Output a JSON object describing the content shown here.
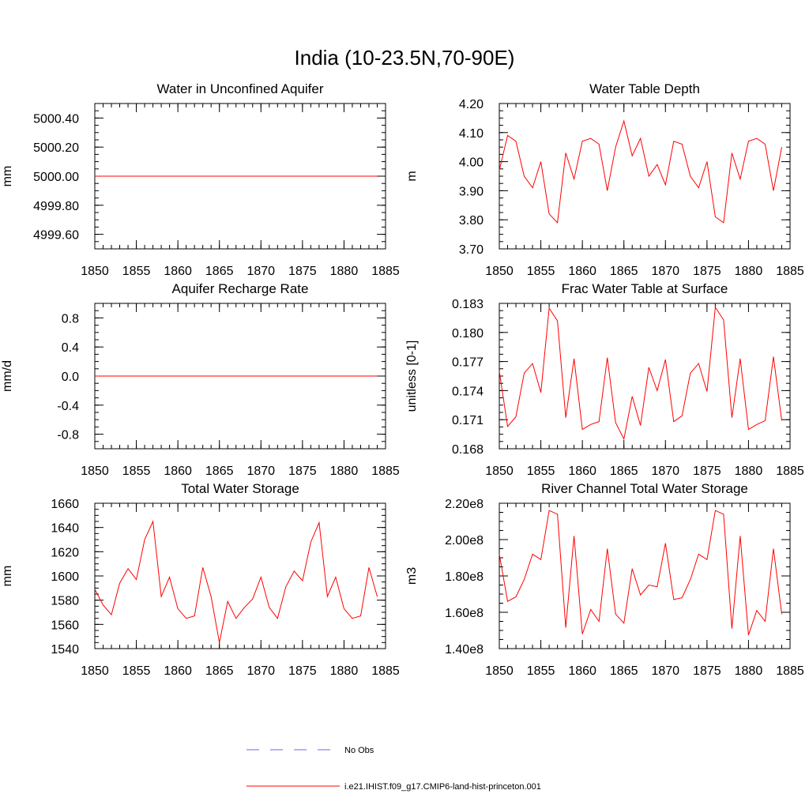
{
  "figure": {
    "title": "India (10-23.5N,70-90E)",
    "line_color": "#ff0000",
    "obs_color": "#6a6ad8"
  },
  "legend": {
    "obs_label": "No Obs",
    "model_label": "i.e21.IHIST.f09_g17.CMIP6-land-hist-princeton.001"
  },
  "chart_data": [
    {
      "type": "line",
      "title": "Water in Unconfined Aquifer",
      "ylabel": "mm",
      "xlabel": "",
      "xlim": [
        1850,
        1885
      ],
      "ylim": [
        4999.5,
        5000.5
      ],
      "xticks": [
        1850,
        1855,
        1860,
        1865,
        1870,
        1875,
        1880,
        1885
      ],
      "yticks": [
        4999.6,
        4999.8,
        5000.0,
        5000.2,
        5000.4
      ],
      "ytick_labels": [
        "4999.60",
        "4999.80",
        "5000.00",
        "5000.20",
        "5000.40"
      ],
      "series": [
        {
          "x": [
            1850,
            1884
          ],
          "values": [
            5000.0,
            5000.0
          ]
        }
      ]
    },
    {
      "type": "line",
      "title": "Water Table Depth",
      "ylabel": "m",
      "xlabel": "",
      "xlim": [
        1850,
        1885
      ],
      "ylim": [
        3.7,
        4.2
      ],
      "xticks": [
        1850,
        1855,
        1860,
        1865,
        1870,
        1875,
        1880,
        1885
      ],
      "yticks": [
        3.7,
        3.8,
        3.9,
        4.0,
        4.1,
        4.2
      ],
      "ytick_labels": [
        "3.70",
        "3.80",
        "3.90",
        "4.00",
        "4.10",
        "4.20"
      ],
      "series": [
        {
          "x": [
            1850,
            1851,
            1852,
            1853,
            1854,
            1855,
            1856,
            1857,
            1858,
            1859,
            1860,
            1861,
            1862,
            1863,
            1864,
            1865,
            1866,
            1867,
            1868,
            1869,
            1870,
            1871,
            1872,
            1873,
            1874,
            1875,
            1876,
            1877,
            1878,
            1879,
            1880,
            1881,
            1882,
            1883,
            1884
          ],
          "values": [
            3.97,
            4.09,
            4.07,
            3.95,
            3.91,
            4.0,
            3.82,
            3.79,
            4.03,
            3.94,
            4.07,
            4.08,
            4.06,
            3.9,
            4.05,
            4.14,
            4.02,
            4.08,
            3.95,
            3.99,
            3.92,
            4.07,
            4.06,
            3.95,
            3.91,
            4.0,
            3.81,
            3.79,
            4.03,
            3.94,
            4.07,
            4.08,
            4.06,
            3.9,
            4.05
          ]
        }
      ]
    },
    {
      "type": "line",
      "title": "Aquifer Recharge Rate",
      "ylabel": "mm/d",
      "xlabel": "",
      "xlim": [
        1850,
        1885
      ],
      "ylim": [
        -1.0,
        1.0
      ],
      "xticks": [
        1850,
        1855,
        1860,
        1865,
        1870,
        1875,
        1880,
        1885
      ],
      "yticks": [
        -0.8,
        -0.4,
        0.0,
        0.4,
        0.8
      ],
      "ytick_labels": [
        "-0.8",
        "-0.4",
        "0.0",
        "0.4",
        "0.8"
      ],
      "series": [
        {
          "x": [
            1850,
            1884
          ],
          "values": [
            0.0,
            0.0
          ]
        }
      ]
    },
    {
      "type": "line",
      "title": "Frac Water Table at Surface",
      "ylabel": "unitless [0-1]",
      "xlabel": "",
      "xlim": [
        1850,
        1885
      ],
      "ylim": [
        0.168,
        0.183
      ],
      "xticks": [
        1850,
        1855,
        1860,
        1865,
        1870,
        1875,
        1880,
        1885
      ],
      "yticks": [
        0.168,
        0.171,
        0.174,
        0.177,
        0.18,
        0.183
      ],
      "ytick_labels": [
        "0.168",
        "0.171",
        "0.174",
        "0.177",
        "0.180",
        "0.183"
      ],
      "series": [
        {
          "x": [
            1850,
            1851,
            1852,
            1853,
            1854,
            1855,
            1856,
            1857,
            1858,
            1859,
            1860,
            1861,
            1862,
            1863,
            1864,
            1865,
            1866,
            1867,
            1868,
            1869,
            1870,
            1871,
            1872,
            1873,
            1874,
            1875,
            1876,
            1877,
            1878,
            1879,
            1880,
            1881,
            1882,
            1883,
            1884
          ],
          "values": [
            0.176,
            0.1703,
            0.1713,
            0.1758,
            0.1768,
            0.1738,
            0.1825,
            0.1812,
            0.1712,
            0.1773,
            0.17,
            0.1705,
            0.1708,
            0.1774,
            0.1707,
            0.169,
            0.1734,
            0.1704,
            0.1764,
            0.174,
            0.1772,
            0.1708,
            0.1714,
            0.1758,
            0.1768,
            0.1739,
            0.1826,
            0.1813,
            0.1712,
            0.1773,
            0.17,
            0.1705,
            0.1709,
            0.1775,
            0.1709
          ]
        }
      ]
    },
    {
      "type": "line",
      "title": "Total Water Storage",
      "ylabel": "mm",
      "xlabel": "",
      "xlim": [
        1850,
        1885
      ],
      "ylim": [
        1540,
        1660
      ],
      "xticks": [
        1850,
        1855,
        1860,
        1865,
        1870,
        1875,
        1880,
        1885
      ],
      "yticks": [
        1540,
        1560,
        1580,
        1600,
        1620,
        1640,
        1660
      ],
      "ytick_labels": [
        "1540",
        "1560",
        "1580",
        "1600",
        "1620",
        "1640",
        "1660"
      ],
      "series": [
        {
          "x": [
            1850,
            1851,
            1852,
            1853,
            1854,
            1855,
            1856,
            1857,
            1858,
            1859,
            1860,
            1861,
            1862,
            1863,
            1864,
            1865,
            1866,
            1867,
            1868,
            1869,
            1870,
            1871,
            1872,
            1873,
            1874,
            1875,
            1876,
            1877,
            1878,
            1879,
            1880,
            1881,
            1882,
            1883,
            1884
          ],
          "values": [
            1589,
            1576,
            1568,
            1594,
            1606,
            1597,
            1630,
            1645,
            1583,
            1599,
            1573,
            1565,
            1567,
            1607,
            1583,
            1545,
            1579,
            1565,
            1574,
            1581,
            1599,
            1574,
            1565,
            1591,
            1604,
            1596,
            1628,
            1644,
            1583,
            1599,
            1573,
            1565,
            1567,
            1607,
            1583
          ]
        }
      ]
    },
    {
      "type": "line",
      "title": "River Channel Total Water Storage",
      "ylabel": "m3",
      "xlabel": "",
      "xlim": [
        1850,
        1885
      ],
      "ylim": [
        140000000,
        220000000
      ],
      "xticks": [
        1850,
        1855,
        1860,
        1865,
        1870,
        1875,
        1880,
        1885
      ],
      "yticks": [
        140000000,
        160000000,
        180000000,
        200000000,
        220000000
      ],
      "ytick_labels": [
        "1.40e8",
        "1.60e8",
        "1.80e8",
        "2.00e8",
        "2.20e8"
      ],
      "series": [
        {
          "x": [
            1850,
            1851,
            1852,
            1853,
            1854,
            1855,
            1856,
            1857,
            1858,
            1859,
            1860,
            1861,
            1862,
            1863,
            1864,
            1865,
            1866,
            1867,
            1868,
            1869,
            1870,
            1871,
            1872,
            1873,
            1874,
            1875,
            1876,
            1877,
            1878,
            1879,
            1880,
            1881,
            1882,
            1883,
            1884
          ],
          "values": [
            192000000,
            166000000,
            168500000,
            178000000,
            192000000,
            189000000,
            216000000,
            214000000,
            151500000,
            202000000,
            148000000,
            161500000,
            155000000,
            195000000,
            159000000,
            154000000,
            184000000,
            169500000,
            175000000,
            174000000,
            198000000,
            167000000,
            168000000,
            178000000,
            192000000,
            189000000,
            216000000,
            214000000,
            151000000,
            202000000,
            147500000,
            161000000,
            155000000,
            195000000,
            159000000
          ]
        }
      ]
    }
  ]
}
